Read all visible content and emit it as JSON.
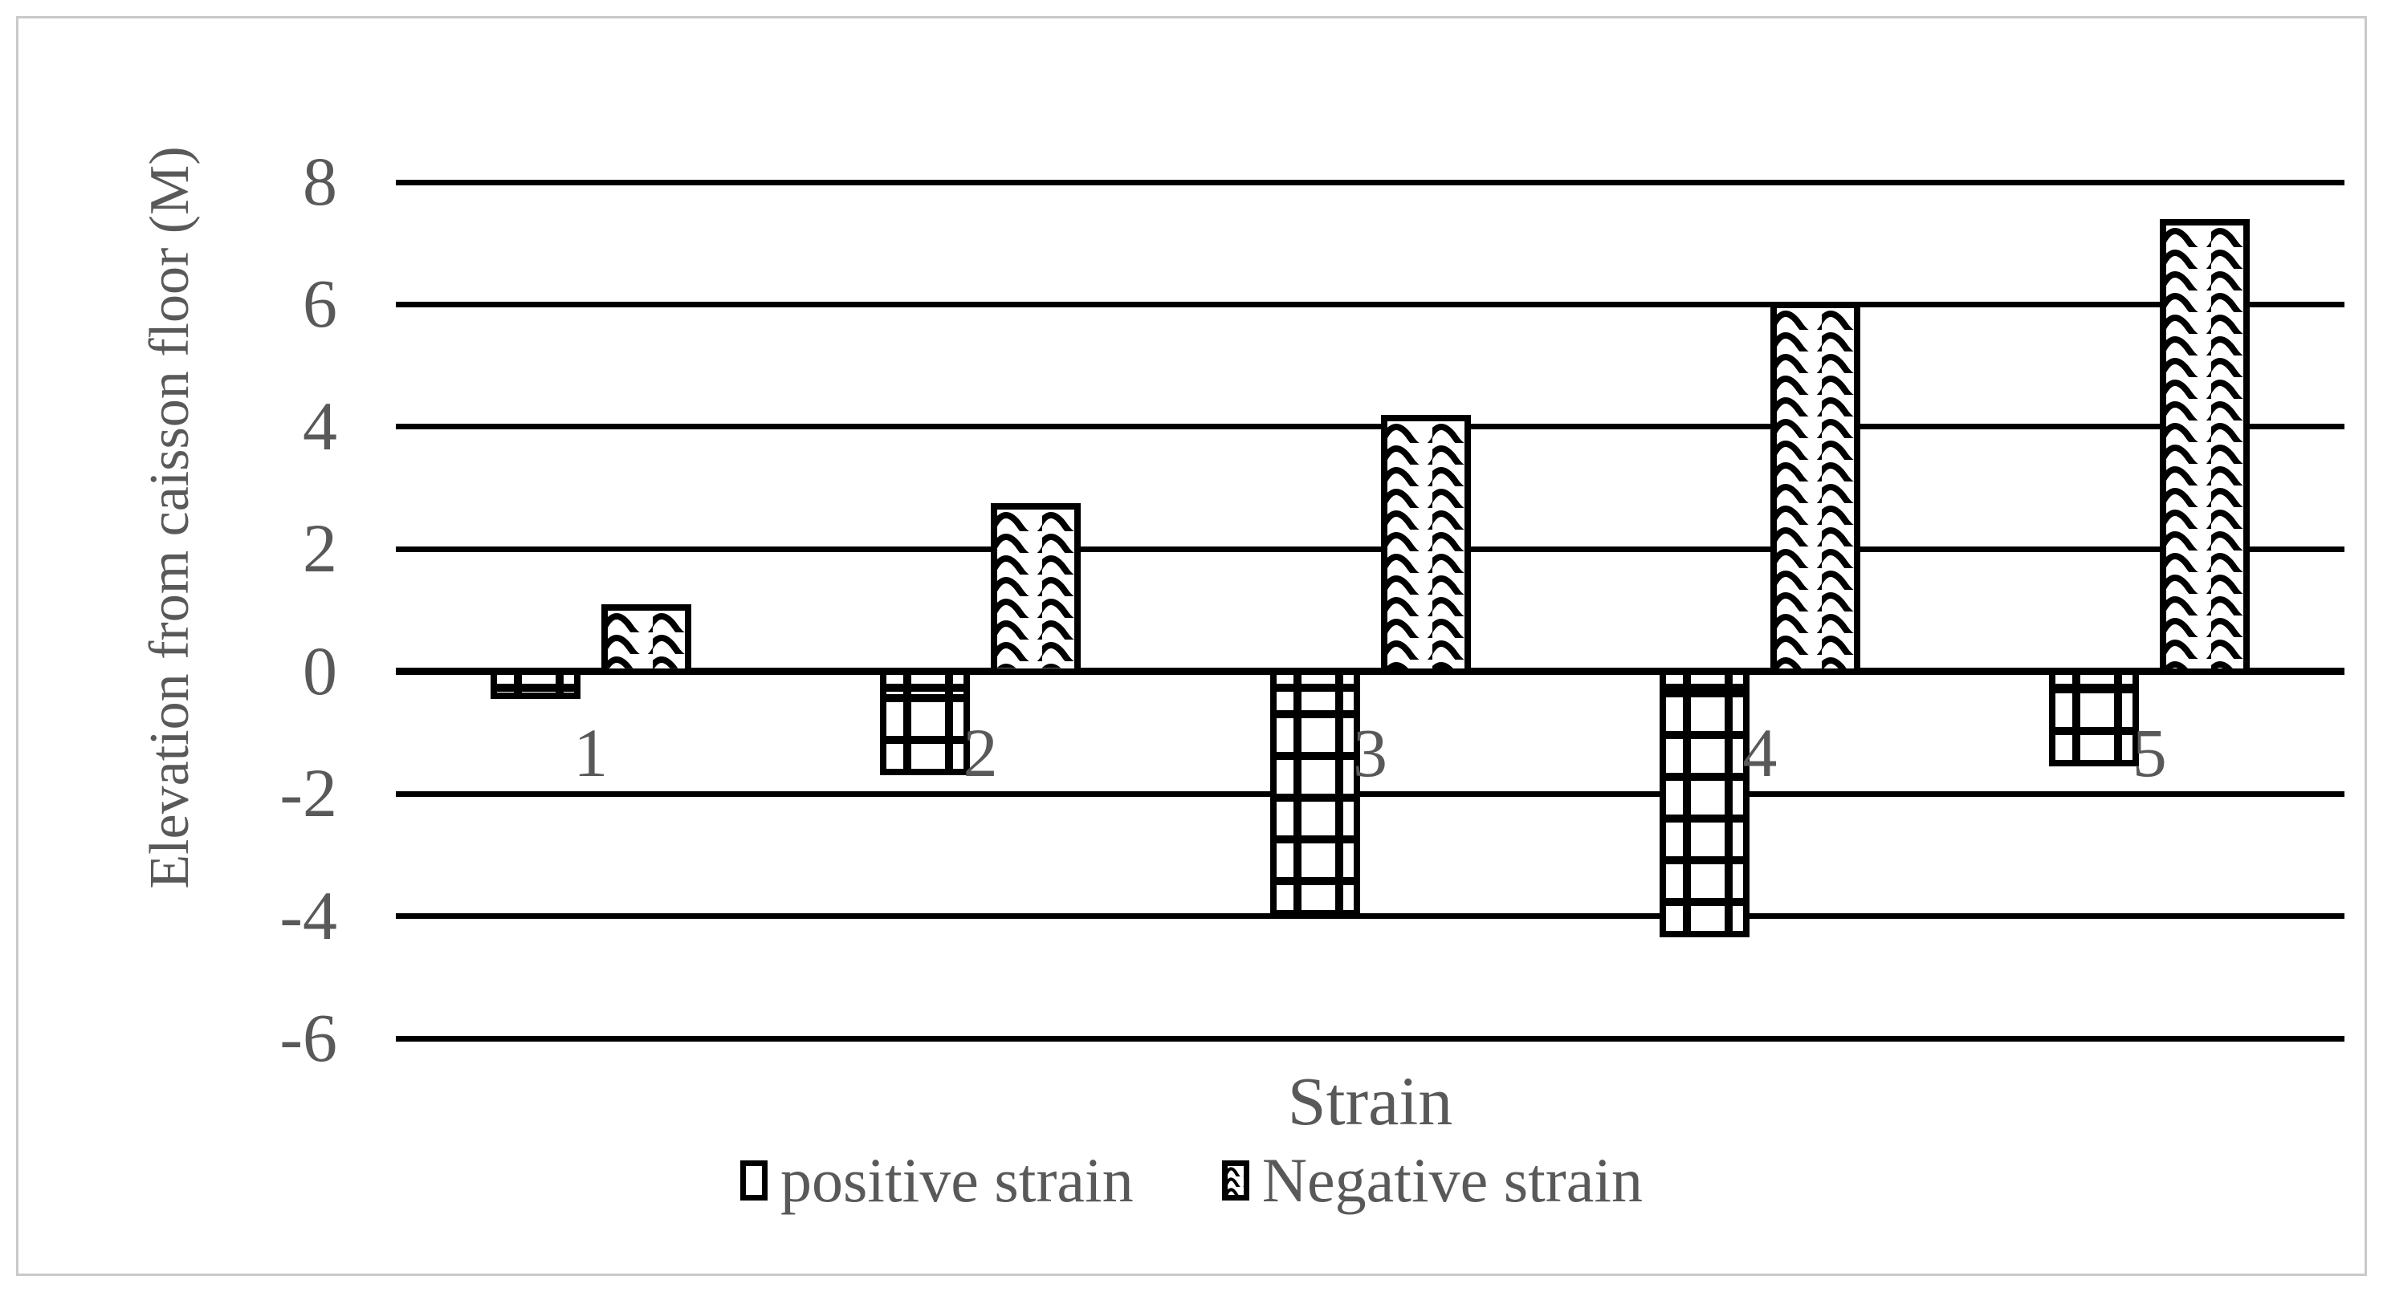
{
  "figure": {
    "background": "#ffffff",
    "border_color": "#c9c9c9",
    "text_color": "#595959",
    "line_color": "#000000"
  },
  "chart_data": {
    "type": "bar",
    "title": "",
    "xlabel": "Strain",
    "ylabel": "Elevation from caisson floor (M)",
    "categories": [
      "1",
      "2",
      "3",
      "4",
      "5"
    ],
    "series": [
      {
        "name": "positive strain",
        "pattern": "grid",
        "values": [
          -0.45,
          -1.7,
          -4.0,
          -4.35,
          -1.55
        ]
      },
      {
        "name": "Negative strain",
        "pattern": "wave",
        "values": [
          1.1,
          2.75,
          4.2,
          6.05,
          7.4
        ]
      }
    ],
    "ylim": [
      -6,
      8
    ],
    "yticks": [
      8,
      6,
      4,
      2,
      0,
      -2,
      -4,
      -6
    ],
    "ytick_labels": [
      "8",
      "6",
      "4",
      "2",
      "0",
      "-2",
      "-4",
      "-6"
    ],
    "grid": true,
    "legend_position": "bottom"
  },
  "legend": {
    "items": [
      {
        "label": "positive strain",
        "swatch": "grid"
      },
      {
        "label": "Negative strain",
        "swatch": "wave"
      }
    ]
  }
}
